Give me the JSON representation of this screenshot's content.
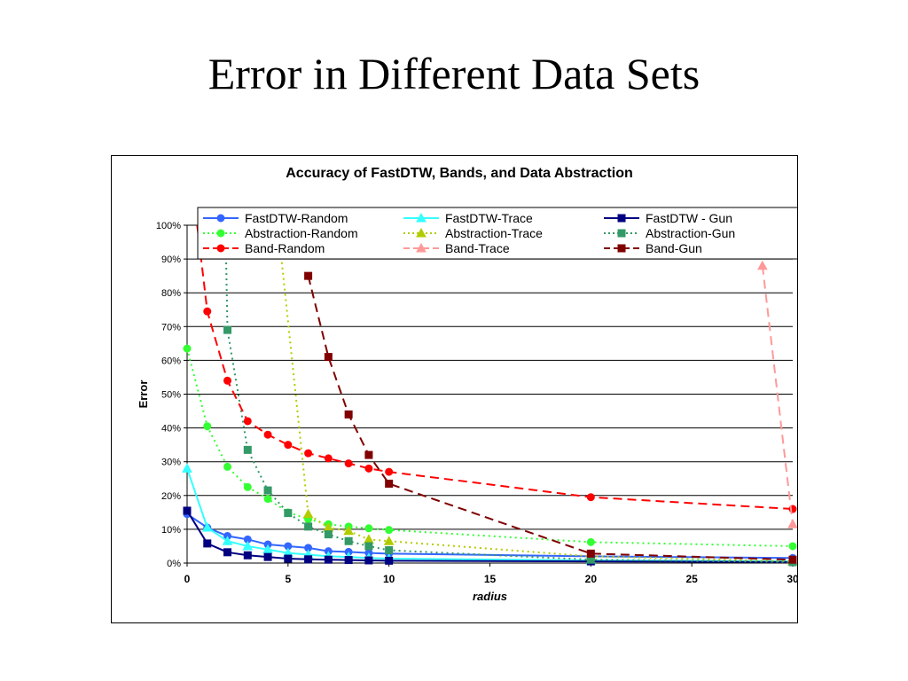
{
  "page": {
    "title": "Error in Different Data Sets"
  },
  "chart_data": {
    "type": "line",
    "title": "Accuracy of FastDTW, Bands, and Data Abstraction",
    "xlabel": "radius",
    "ylabel": "Error",
    "xlim": [
      0,
      30
    ],
    "ylim": [
      0,
      100
    ],
    "x_ticks": [
      "0",
      "5",
      "10",
      "15",
      "20",
      "25",
      "30"
    ],
    "y_ticks": [
      "0%",
      "10%",
      "20%",
      "30%",
      "40%",
      "50%",
      "60%",
      "70%",
      "80%",
      "90%",
      "100%"
    ],
    "grid": "horizontal",
    "legend_position": "top",
    "series": [
      {
        "name": "FastDTW-Random",
        "color": "#3366ff",
        "marker": "circle",
        "dash": "solid",
        "x": [
          0,
          1,
          2,
          3,
          4,
          5,
          6,
          7,
          8,
          9,
          10,
          20,
          30
        ],
        "y": [
          14.5,
          10.5,
          8.0,
          7.0,
          5.5,
          5.0,
          4.5,
          3.5,
          3.3,
          3.0,
          2.8,
          2.0,
          1.5
        ]
      },
      {
        "name": "FastDTW-Trace",
        "color": "#33ffff",
        "marker": "triangle",
        "dash": "solid",
        "x": [
          0,
          1,
          2,
          3,
          4,
          5,
          6,
          7,
          8,
          9,
          10,
          20,
          30
        ],
        "y": [
          28,
          10.5,
          6.5,
          5.0,
          4.0,
          3.0,
          2.5,
          2.0,
          1.8,
          1.5,
          1.3,
          0.8,
          0.5
        ]
      },
      {
        "name": "FastDTW - Gun",
        "color": "#000080",
        "marker": "square",
        "dash": "solid",
        "x": [
          0,
          1,
          2,
          3,
          4,
          5,
          6,
          7,
          8,
          9,
          10,
          20,
          30
        ],
        "y": [
          15.5,
          5.8,
          3.2,
          2.3,
          1.8,
          1.3,
          1.1,
          1.0,
          0.9,
          0.8,
          0.7,
          0.5,
          0.3
        ]
      },
      {
        "name": "Abstraction-Random",
        "color": "#33ff33",
        "marker": "circle",
        "dash": "dotted",
        "x": [
          0,
          1,
          2,
          3,
          4,
          5,
          6,
          7,
          8,
          9,
          10,
          20,
          30
        ],
        "y": [
          63.5,
          40.5,
          28.5,
          22.5,
          19.0,
          15.0,
          13.0,
          11.5,
          10.8,
          10.3,
          9.8,
          6.2,
          5.0
        ]
      },
      {
        "name": "Abstraction-Trace",
        "color": "#b3cc00",
        "marker": "triangle",
        "dash": "dotted",
        "x": [
          4.5,
          6,
          7,
          8,
          9,
          10,
          20,
          30
        ],
        "y": [
          100,
          14.5,
          10.5,
          9.5,
          7.0,
          6.5,
          2.0,
          0.5
        ]
      },
      {
        "name": "Abstraction-Gun",
        "color": "#339966",
        "marker": "square",
        "dash": "dotted",
        "x": [
          1.9,
          2,
          3,
          4,
          5,
          6,
          7,
          8,
          9,
          10,
          20,
          30
        ],
        "y": [
          100,
          69,
          33.5,
          21.5,
          14.8,
          10.8,
          8.5,
          6.5,
          5.0,
          3.8,
          1.0,
          0.3
        ]
      },
      {
        "name": "Band-Random",
        "color": "#ff0000",
        "marker": "circle",
        "dash": "dashed",
        "x": [
          0.5,
          1,
          2,
          3,
          4,
          5,
          6,
          7,
          8,
          9,
          10,
          20,
          30
        ],
        "y": [
          100,
          74.5,
          54.0,
          42.0,
          38.0,
          35.0,
          32.5,
          31.0,
          29.5,
          28.0,
          27.0,
          19.5,
          16.0
        ]
      },
      {
        "name": "Band-Trace",
        "color": "#ff9999",
        "marker": "triangle",
        "dash": "dashed",
        "x": [
          28.5,
          30
        ],
        "y": [
          88,
          11.5
        ]
      },
      {
        "name": "Band-Gun",
        "color": "#800000",
        "marker": "square",
        "dash": "dashed",
        "x": [
          6,
          7,
          8,
          9,
          10,
          20,
          30
        ],
        "y": [
          85,
          61,
          44,
          32,
          23.5,
          2.8,
          1.0
        ]
      }
    ]
  }
}
